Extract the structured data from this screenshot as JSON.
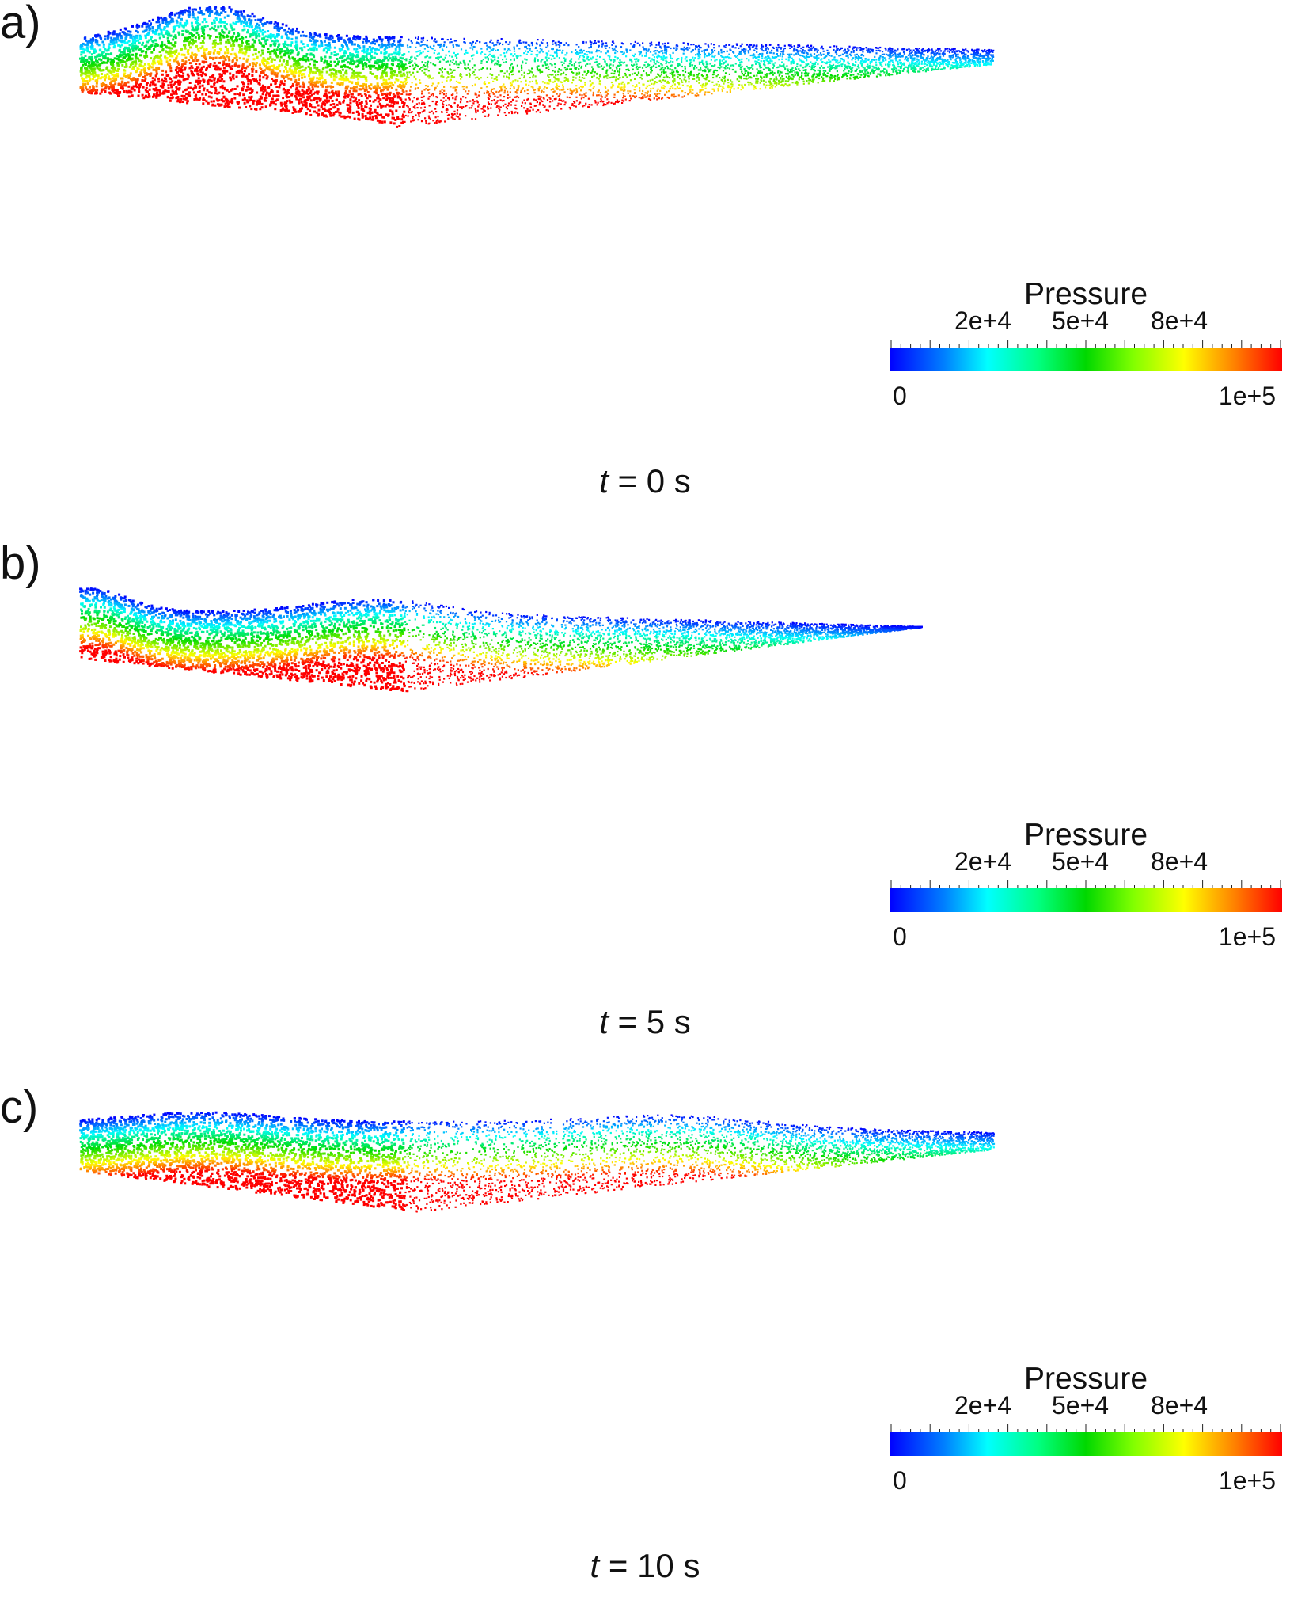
{
  "panels": [
    {
      "label": "a)",
      "time_var": "t",
      "time_rest": " = 0 s",
      "shape": "bump-left"
    },
    {
      "label": "b)",
      "time_var": "t",
      "time_rest": " = 5 s",
      "shape": "bump-mid"
    },
    {
      "label": "c)",
      "time_var": "t",
      "time_rest": " = 10 s",
      "shape": "bump-right"
    }
  ],
  "legend": {
    "title": "Pressure",
    "min_label": "0",
    "max_label": "1e+5",
    "tick_labels": [
      "2e+4",
      "5e+4",
      "8e+4"
    ]
  },
  "colors": {
    "colormap": [
      "#0000ff",
      "#00ffff",
      "#00ff00",
      "#ffff00",
      "#ff0000"
    ]
  }
}
